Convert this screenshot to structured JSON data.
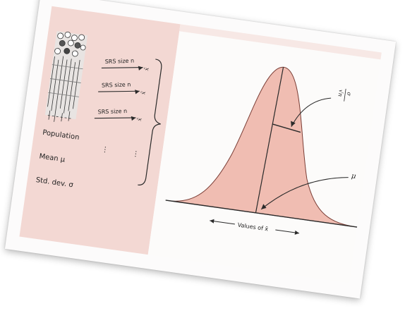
{
  "diagram": {
    "population": {
      "label": "Population",
      "mean_label": "Mean μ",
      "std_label": "Std. dev. σ"
    },
    "samples": [
      {
        "label": "SRS size n",
        "stat": "x̄"
      },
      {
        "label": "SRS size n",
        "stat": "x̄"
      },
      {
        "label": "SRS size n",
        "stat": "x̄"
      }
    ],
    "ellipsis": "⋮",
    "sigma_annotation": {
      "numerator": "σ",
      "denominator": "√n"
    },
    "mu_annotation": "μ",
    "axis_label": "Values of x̄",
    "colors": {
      "panel_bg": "#f3d8d3",
      "curve_fill": "#f0bdb2",
      "ink": "#2a2a2a",
      "plot_bg": "#fcfbfa"
    }
  }
}
